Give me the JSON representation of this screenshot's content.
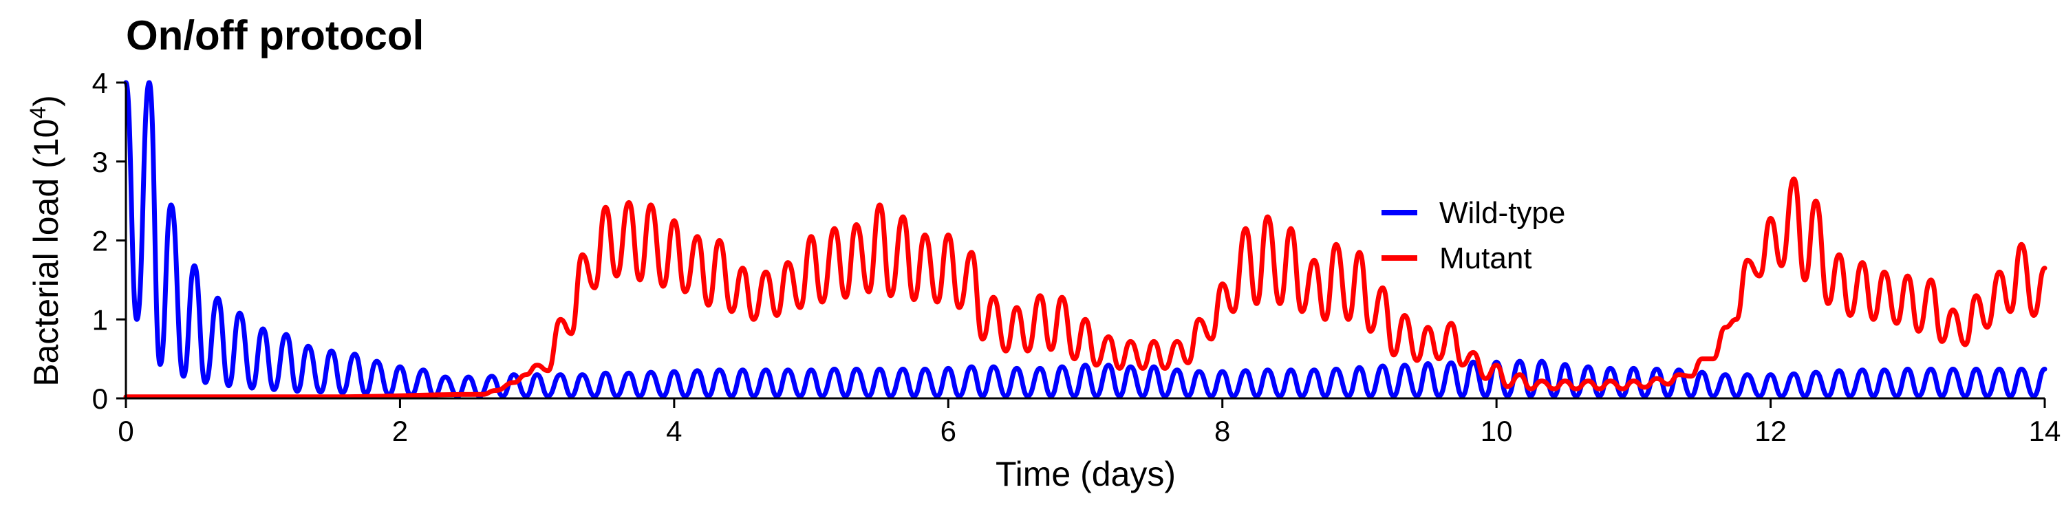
{
  "chart_data": {
    "type": "line",
    "title": "On/off protocol",
    "xlabel": "Time (days)",
    "ylabel": "Bacterial load",
    "ylabel_unit_base": "(10",
    "ylabel_unit_exp": "4",
    "ylabel_unit_close": ")",
    "xlim": [
      0,
      14
    ],
    "ylim": [
      0,
      4
    ],
    "xticks": [
      0,
      2,
      4,
      6,
      8,
      10,
      12,
      14
    ],
    "yticks": [
      0,
      1,
      2,
      3,
      4
    ],
    "grid": false,
    "legend_position": "upper-right",
    "series": [
      {
        "name": "Wild-type",
        "color": "#0000ff",
        "peaks": [
          [
            0.0,
            4.0
          ],
          [
            0.17,
            4.0
          ],
          [
            0.33,
            2.45
          ],
          [
            0.5,
            1.68
          ],
          [
            0.67,
            1.27
          ],
          [
            0.83,
            1.08
          ],
          [
            1.0,
            0.88
          ],
          [
            1.17,
            0.81
          ],
          [
            1.33,
            0.66
          ],
          [
            1.5,
            0.6
          ],
          [
            1.67,
            0.56
          ],
          [
            1.83,
            0.47
          ],
          [
            2.0,
            0.4
          ],
          [
            2.17,
            0.36
          ],
          [
            2.33,
            0.27
          ],
          [
            2.5,
            0.27
          ],
          [
            2.67,
            0.28
          ],
          [
            2.83,
            0.3
          ],
          [
            3.0,
            0.3
          ],
          [
            3.17,
            0.3
          ],
          [
            3.33,
            0.3
          ],
          [
            3.5,
            0.32
          ],
          [
            3.67,
            0.32
          ],
          [
            3.83,
            0.33
          ],
          [
            4.0,
            0.34
          ],
          [
            4.17,
            0.35
          ],
          [
            4.33,
            0.36
          ],
          [
            4.5,
            0.36
          ],
          [
            4.67,
            0.36
          ],
          [
            4.83,
            0.36
          ],
          [
            5.0,
            0.36
          ],
          [
            5.17,
            0.37
          ],
          [
            5.33,
            0.37
          ],
          [
            5.5,
            0.37
          ],
          [
            5.67,
            0.37
          ],
          [
            5.83,
            0.37
          ],
          [
            6.0,
            0.38
          ],
          [
            6.17,
            0.4
          ],
          [
            6.33,
            0.4
          ],
          [
            6.5,
            0.38
          ],
          [
            6.67,
            0.38
          ],
          [
            6.83,
            0.4
          ],
          [
            7.0,
            0.42
          ],
          [
            7.17,
            0.42
          ],
          [
            7.33,
            0.4
          ],
          [
            7.5,
            0.4
          ],
          [
            7.67,
            0.36
          ],
          [
            7.83,
            0.34
          ],
          [
            8.0,
            0.34
          ],
          [
            8.17,
            0.35
          ],
          [
            8.33,
            0.36
          ],
          [
            8.5,
            0.36
          ],
          [
            8.67,
            0.36
          ],
          [
            8.83,
            0.37
          ],
          [
            9.0,
            0.39
          ],
          [
            9.17,
            0.41
          ],
          [
            9.33,
            0.42
          ],
          [
            9.5,
            0.44
          ],
          [
            9.67,
            0.45
          ],
          [
            9.83,
            0.46
          ],
          [
            10.0,
            0.46
          ],
          [
            10.17,
            0.47
          ],
          [
            10.33,
            0.47
          ],
          [
            10.5,
            0.43
          ],
          [
            10.67,
            0.4
          ],
          [
            10.83,
            0.38
          ],
          [
            11.0,
            0.38
          ],
          [
            11.17,
            0.37
          ],
          [
            11.33,
            0.36
          ],
          [
            11.5,
            0.33
          ],
          [
            11.67,
            0.3
          ],
          [
            11.83,
            0.3
          ],
          [
            12.0,
            0.3
          ],
          [
            12.17,
            0.31
          ],
          [
            12.33,
            0.33
          ],
          [
            12.5,
            0.35
          ],
          [
            12.67,
            0.36
          ],
          [
            12.83,
            0.36
          ],
          [
            13.0,
            0.37
          ],
          [
            13.17,
            0.37
          ],
          [
            13.33,
            0.37
          ],
          [
            13.5,
            0.37
          ],
          [
            13.67,
            0.37
          ],
          [
            13.83,
            0.37
          ],
          [
            14.0,
            0.37
          ]
        ],
        "troughs": [
          [
            0.08,
            1.0
          ],
          [
            0.25,
            0.43
          ],
          [
            0.42,
            0.28
          ],
          [
            0.58,
            0.2
          ],
          [
            0.75,
            0.16
          ],
          [
            0.92,
            0.13
          ],
          [
            1.08,
            0.11
          ],
          [
            1.25,
            0.09
          ],
          [
            1.42,
            0.08
          ],
          [
            1.58,
            0.07
          ],
          [
            1.75,
            0.06
          ],
          [
            1.92,
            0.05
          ],
          [
            2.08,
            0.04
          ],
          [
            2.25,
            0.03
          ],
          [
            2.42,
            0.03
          ],
          [
            2.58,
            0.03
          ],
          [
            2.75,
            0.03
          ],
          [
            2.92,
            0.03
          ],
          [
            3.08,
            0.03
          ],
          [
            3.25,
            0.03
          ],
          [
            3.42,
            0.03
          ],
          [
            3.58,
            0.03
          ],
          [
            3.75,
            0.03
          ],
          [
            3.92,
            0.03
          ],
          [
            4.08,
            0.03
          ],
          [
            4.25,
            0.03
          ],
          [
            4.42,
            0.03
          ],
          [
            4.58,
            0.03
          ],
          [
            4.75,
            0.03
          ],
          [
            4.92,
            0.03
          ],
          [
            5.08,
            0.03
          ],
          [
            5.25,
            0.03
          ],
          [
            5.42,
            0.03
          ],
          [
            5.58,
            0.03
          ],
          [
            5.75,
            0.03
          ],
          [
            5.92,
            0.03
          ],
          [
            6.08,
            0.03
          ],
          [
            6.25,
            0.03
          ],
          [
            6.42,
            0.03
          ],
          [
            6.58,
            0.03
          ],
          [
            6.75,
            0.03
          ],
          [
            6.92,
            0.03
          ],
          [
            7.08,
            0.03
          ],
          [
            7.25,
            0.03
          ],
          [
            7.42,
            0.03
          ],
          [
            7.58,
            0.03
          ],
          [
            7.75,
            0.03
          ],
          [
            7.92,
            0.03
          ],
          [
            8.08,
            0.03
          ],
          [
            8.25,
            0.03
          ],
          [
            8.42,
            0.03
          ],
          [
            8.58,
            0.03
          ],
          [
            8.75,
            0.03
          ],
          [
            8.92,
            0.03
          ],
          [
            9.08,
            0.03
          ],
          [
            9.25,
            0.03
          ],
          [
            9.42,
            0.03
          ],
          [
            9.58,
            0.03
          ],
          [
            9.75,
            0.03
          ],
          [
            9.92,
            0.03
          ],
          [
            10.08,
            0.03
          ],
          [
            10.25,
            0.03
          ],
          [
            10.42,
            0.03
          ],
          [
            10.58,
            0.03
          ],
          [
            10.75,
            0.03
          ],
          [
            10.92,
            0.03
          ],
          [
            11.08,
            0.03
          ],
          [
            11.25,
            0.03
          ],
          [
            11.42,
            0.03
          ],
          [
            11.58,
            0.03
          ],
          [
            11.75,
            0.03
          ],
          [
            11.92,
            0.03
          ],
          [
            12.08,
            0.03
          ],
          [
            12.25,
            0.03
          ],
          [
            12.42,
            0.03
          ],
          [
            12.58,
            0.03
          ],
          [
            12.75,
            0.03
          ],
          [
            12.92,
            0.03
          ],
          [
            13.08,
            0.03
          ],
          [
            13.25,
            0.03
          ],
          [
            13.42,
            0.03
          ],
          [
            13.58,
            0.03
          ],
          [
            13.75,
            0.03
          ],
          [
            13.92,
            0.03
          ]
        ]
      },
      {
        "name": "Mutant",
        "color": "#ff0000",
        "peaks": [
          [
            0.0,
            0.02
          ],
          [
            2.6,
            0.05
          ],
          [
            2.83,
            0.2
          ],
          [
            3.0,
            0.42
          ],
          [
            3.17,
            1.0
          ],
          [
            3.33,
            1.82
          ],
          [
            3.5,
            2.42
          ],
          [
            3.67,
            2.48
          ],
          [
            3.83,
            2.45
          ],
          [
            4.0,
            2.25
          ],
          [
            4.17,
            2.05
          ],
          [
            4.33,
            2.0
          ],
          [
            4.5,
            1.65
          ],
          [
            4.67,
            1.6
          ],
          [
            4.83,
            1.72
          ],
          [
            5.0,
            2.05
          ],
          [
            5.17,
            2.15
          ],
          [
            5.33,
            2.2
          ],
          [
            5.5,
            2.45
          ],
          [
            5.67,
            2.3
          ],
          [
            5.83,
            2.07
          ],
          [
            6.0,
            2.07
          ],
          [
            6.17,
            1.85
          ],
          [
            6.33,
            1.28
          ],
          [
            6.5,
            1.15
          ],
          [
            6.67,
            1.3
          ],
          [
            6.83,
            1.28
          ],
          [
            7.0,
            1.0
          ],
          [
            7.17,
            0.78
          ],
          [
            7.33,
            0.72
          ],
          [
            7.5,
            0.72
          ],
          [
            7.67,
            0.72
          ],
          [
            7.83,
            1.0
          ],
          [
            8.0,
            1.45
          ],
          [
            8.17,
            2.15
          ],
          [
            8.33,
            2.3
          ],
          [
            8.5,
            2.15
          ],
          [
            8.67,
            1.75
          ],
          [
            8.83,
            1.95
          ],
          [
            9.0,
            1.85
          ],
          [
            9.17,
            1.4
          ],
          [
            9.33,
            1.05
          ],
          [
            9.5,
            0.9
          ],
          [
            9.67,
            0.95
          ],
          [
            9.83,
            0.58
          ],
          [
            10.0,
            0.42
          ],
          [
            10.17,
            0.3
          ],
          [
            10.33,
            0.22
          ],
          [
            10.5,
            0.22
          ],
          [
            10.67,
            0.22
          ],
          [
            10.83,
            0.22
          ],
          [
            11.0,
            0.22
          ],
          [
            11.17,
            0.25
          ],
          [
            11.33,
            0.3
          ],
          [
            11.5,
            0.5
          ],
          [
            11.67,
            0.9
          ],
          [
            11.83,
            1.75
          ],
          [
            12.0,
            2.28
          ],
          [
            12.17,
            2.78
          ],
          [
            12.33,
            2.5
          ],
          [
            12.5,
            1.82
          ],
          [
            12.67,
            1.72
          ],
          [
            12.83,
            1.6
          ],
          [
            13.0,
            1.55
          ],
          [
            13.17,
            1.5
          ],
          [
            13.33,
            1.12
          ],
          [
            13.5,
            1.3
          ],
          [
            13.67,
            1.6
          ],
          [
            13.83,
            1.95
          ],
          [
            14.0,
            1.65
          ]
        ],
        "troughs": [
          [
            1.5,
            0.02
          ],
          [
            2.7,
            0.1
          ],
          [
            2.92,
            0.3
          ],
          [
            3.08,
            0.35
          ],
          [
            3.25,
            0.82
          ],
          [
            3.42,
            1.4
          ],
          [
            3.58,
            1.55
          ],
          [
            3.75,
            1.5
          ],
          [
            3.92,
            1.42
          ],
          [
            4.08,
            1.35
          ],
          [
            4.25,
            1.18
          ],
          [
            4.42,
            1.1
          ],
          [
            4.58,
            1.0
          ],
          [
            4.75,
            1.05
          ],
          [
            4.92,
            1.15
          ],
          [
            5.08,
            1.22
          ],
          [
            5.25,
            1.28
          ],
          [
            5.42,
            1.35
          ],
          [
            5.58,
            1.3
          ],
          [
            5.75,
            1.25
          ],
          [
            5.92,
            1.22
          ],
          [
            6.08,
            1.15
          ],
          [
            6.25,
            0.75
          ],
          [
            6.42,
            0.6
          ],
          [
            6.58,
            0.6
          ],
          [
            6.75,
            0.62
          ],
          [
            6.92,
            0.5
          ],
          [
            7.08,
            0.42
          ],
          [
            7.25,
            0.38
          ],
          [
            7.42,
            0.38
          ],
          [
            7.58,
            0.38
          ],
          [
            7.75,
            0.45
          ],
          [
            7.92,
            0.75
          ],
          [
            8.08,
            1.1
          ],
          [
            8.25,
            1.2
          ],
          [
            8.42,
            1.2
          ],
          [
            8.58,
            1.1
          ],
          [
            8.75,
            1.0
          ],
          [
            8.92,
            1.0
          ],
          [
            9.08,
            0.85
          ],
          [
            9.25,
            0.55
          ],
          [
            9.42,
            0.48
          ],
          [
            9.58,
            0.5
          ],
          [
            9.75,
            0.42
          ],
          [
            9.92,
            0.25
          ],
          [
            10.08,
            0.15
          ],
          [
            10.25,
            0.12
          ],
          [
            10.42,
            0.12
          ],
          [
            10.58,
            0.12
          ],
          [
            10.75,
            0.12
          ],
          [
            10.92,
            0.12
          ],
          [
            11.08,
            0.14
          ],
          [
            11.25,
            0.18
          ],
          [
            11.42,
            0.28
          ],
          [
            11.58,
            0.5
          ],
          [
            11.75,
            1.0
          ],
          [
            11.92,
            1.55
          ],
          [
            12.08,
            1.68
          ],
          [
            12.25,
            1.5
          ],
          [
            12.42,
            1.2
          ],
          [
            12.58,
            1.05
          ],
          [
            12.75,
            1.0
          ],
          [
            12.92,
            0.95
          ],
          [
            13.08,
            0.85
          ],
          [
            13.25,
            0.72
          ],
          [
            13.42,
            0.68
          ],
          [
            13.58,
            0.9
          ],
          [
            13.75,
            1.1
          ],
          [
            13.92,
            1.05
          ]
        ]
      }
    ]
  }
}
